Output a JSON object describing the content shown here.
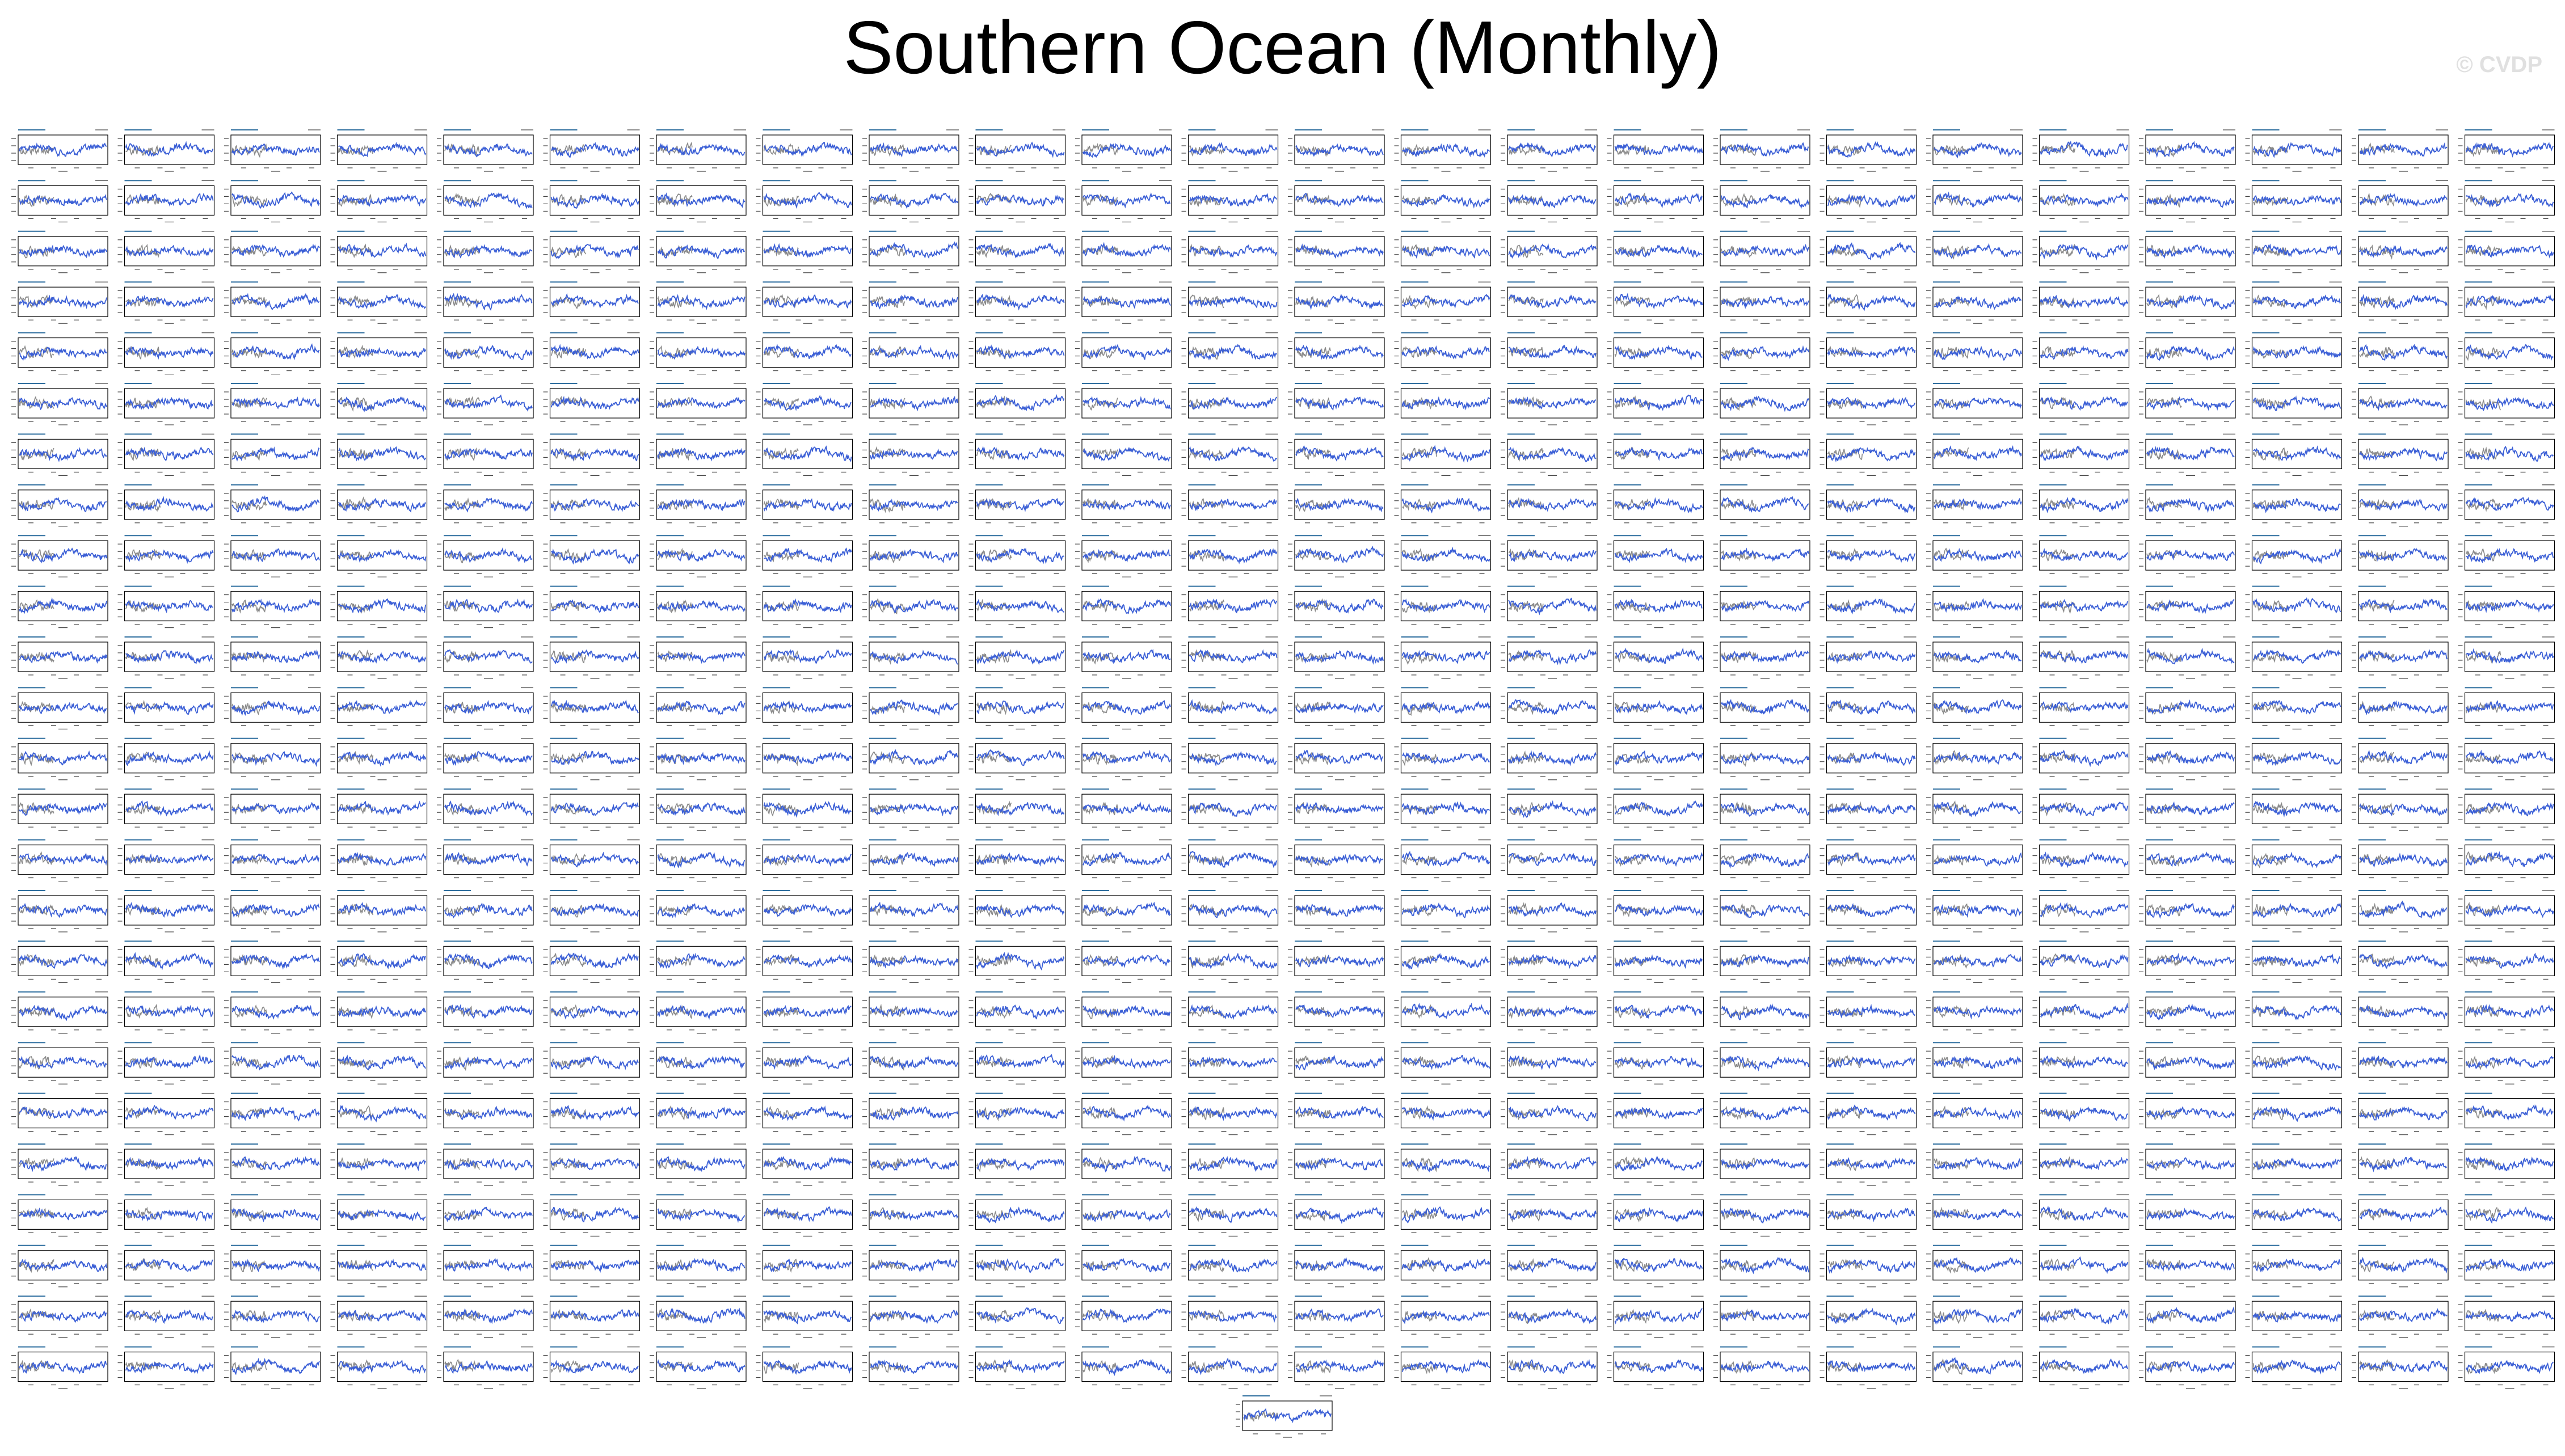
{
  "figure": {
    "title": "Southern Ocean (Monthly)",
    "watermark": "© CVDP"
  },
  "chart_data": {
    "type": "line",
    "title": "Southern Ocean (Monthly)",
    "layout": {
      "rows": 25,
      "cols": 24,
      "extra_panels": 1
    },
    "panel_count": 601,
    "series": [
      {
        "name": "",
        "color": "#3b5fd6",
        "kind": "ensemble member index (monthly)"
      },
      {
        "name": "",
        "color": "#8a8a8a",
        "kind": "observations (monthly)"
      }
    ],
    "colors": {
      "member": "#3b5fd6",
      "obs": "#8a8a8a",
      "panel_title": "#2f6f9f",
      "axis": "#000000"
    },
    "x_range": [
      0,
      1
    ],
    "y_range": [
      -1,
      1
    ],
    "grid": false,
    "legend": "none"
  }
}
